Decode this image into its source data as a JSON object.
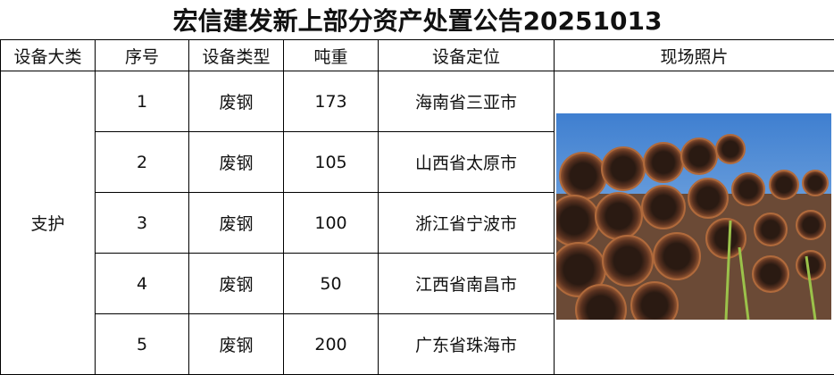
{
  "title": "宏信建发新上部分资产处置公告20251013",
  "headers": [
    "设备大类",
    "序号",
    "设备类型",
    "吨重",
    "设备定位",
    "现场照片"
  ],
  "category": "支护",
  "rows": [
    {
      "no": "1",
      "type": "废钢",
      "weight": "173",
      "location": "海南省三亚市"
    },
    {
      "no": "2",
      "type": "废钢",
      "weight": "105",
      "location": "山西省太原市"
    },
    {
      "no": "3",
      "type": "废钢",
      "weight": "100",
      "location": "浙江省宁波市"
    },
    {
      "no": "4",
      "type": "废钢",
      "weight": "50",
      "location": "江西省南昌市"
    },
    {
      "no": "5",
      "type": "废钢",
      "weight": "200",
      "location": "广东省珠海市"
    }
  ]
}
